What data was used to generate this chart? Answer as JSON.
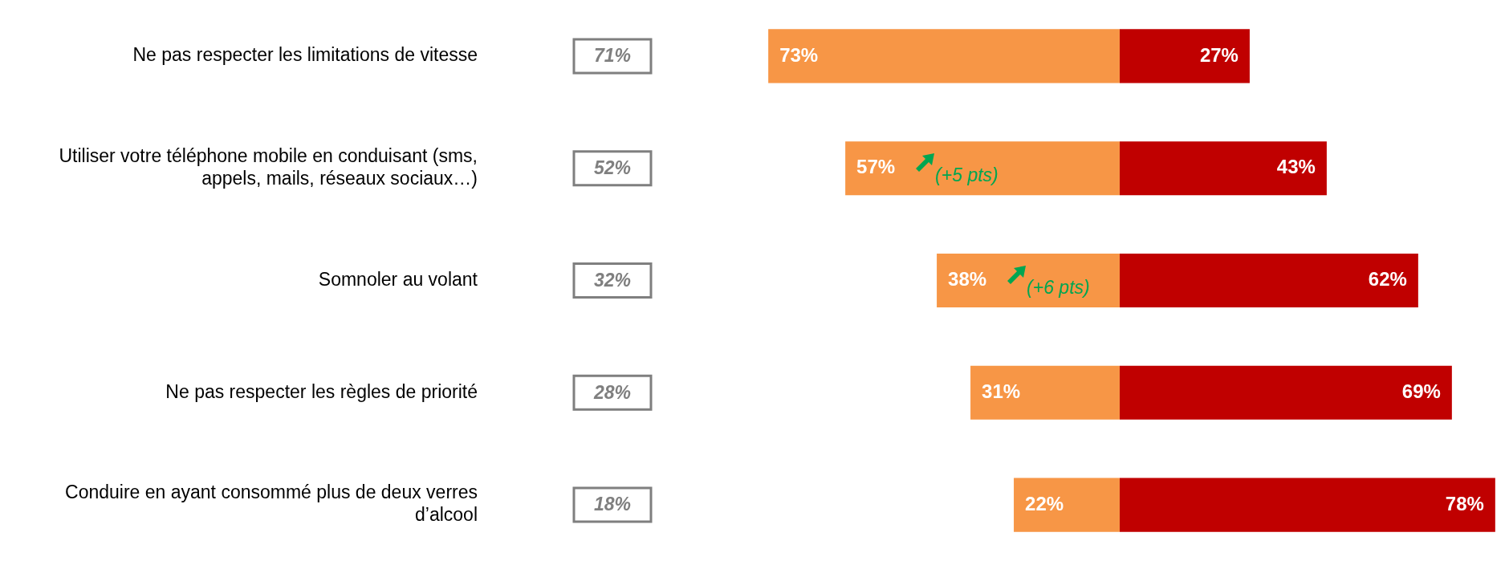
{
  "chart_data": [
    {
      "type": "bar",
      "orientation": "horizontal",
      "tick_labels": "y",
      "categories": [
        "Ne pas respecter les limitations de vitesse",
        "Utiliser votre téléphone mobile en conduisant (sms, appels, mails, réseaux sociaux…)",
        "Somnoler au volant",
        "Ne pas respecter les règles de priorité",
        "Conduire en ayant consommé plus de deux verres d’alcool"
      ],
      "series": [
        {
          "color": "#f79646",
          "values": [
            73,
            57,
            38,
            31,
            22
          ],
          "value_labels": [
            "73%",
            "57%",
            "38%",
            "31%",
            "22%"
          ]
        }
      ],
      "annotations": [
        "71%",
        "52%",
        "32%",
        "28%",
        "18%",
        "(+5 pts)",
        "(+6 pts)"
      ]
    },
    {
      "type": "bar",
      "orientation": "horizontal",
      "tick_labels": false,
      "categories": [
        null,
        null,
        null,
        null,
        null
      ],
      "series": [
        {
          "color": "#c00000",
          "values": [
            27,
            43,
            62,
            69,
            78
          ],
          "value_labels": [
            "27%",
            "43%",
            "62%",
            "69%",
            "78%"
          ]
        }
      ]
    }
  ]
}
